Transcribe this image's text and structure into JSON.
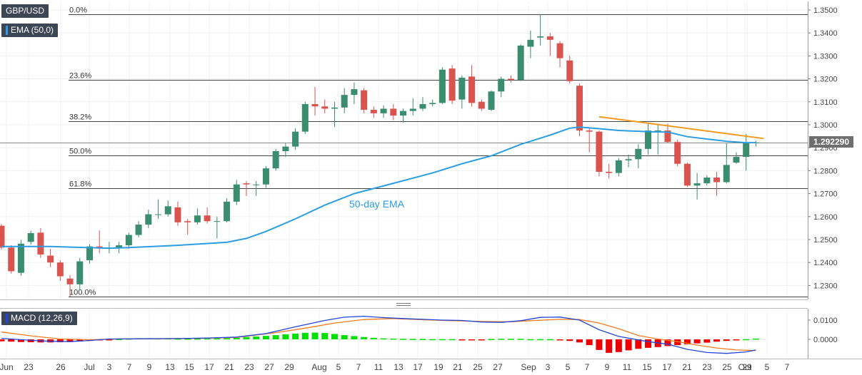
{
  "panel_labels": {
    "symbol": "GBP/USD",
    "ema_indicator": "EMA (50,0)",
    "macd_indicator": "MACD (12,26,9)",
    "ema_annotation": "50-day EMA",
    "last_price": "1.292290"
  },
  "colors": {
    "bull": "#3a8d6e",
    "bear": "#d9534f",
    "ema": "#2b9de0",
    "macd_line": "#2346d6",
    "signal_line": "#f07c1e",
    "hist_pos": "#00e000",
    "hist_neg": "#ee0000",
    "trendline": "#f39a1e",
    "fib": "#444444"
  },
  "chart_data": [
    {
      "type": "candlestick",
      "symbol": "GBP/USD",
      "ylim": [
        1.2245,
        1.3515
      ],
      "yticks": [
        "1.2300",
        "1.2400",
        "1.2500",
        "1.2600",
        "1.2700",
        "1.2800",
        "1.2900",
        "1.3000",
        "1.3100",
        "1.3200",
        "1.3300",
        "1.3400",
        "1.3500"
      ],
      "xtick_labels": [
        "Jun",
        "23",
        "26",
        "Jul",
        "3",
        "7",
        "9",
        "13",
        "15",
        "17",
        "21",
        "23",
        "27",
        "29",
        "Aug",
        "5",
        "7",
        "11",
        "13",
        "17",
        "19",
        "21",
        "25",
        "27",
        "Sep",
        "3",
        "5",
        "7",
        "9",
        "11",
        "15",
        "17",
        "21",
        "23",
        "25",
        "29",
        "Oct",
        "5",
        "7"
      ],
      "fibonacci": [
        {
          "label": "0.0%",
          "value": 1.3482
        },
        {
          "label": "23.6%",
          "value": 1.3196
        },
        {
          "label": "38.2%",
          "value": 1.3016
        },
        {
          "label": "50.0%",
          "value": 1.2868
        },
        {
          "label": "61.8%",
          "value": 1.2724
        },
        {
          "label": "100.0%",
          "value": 1.2251
        }
      ],
      "candles": [
        [
          1.256,
          1.2568,
          1.2455,
          1.2465
        ],
        [
          1.2465,
          1.2475,
          1.2352,
          1.2362
        ],
        [
          1.2355,
          1.2498,
          1.2342,
          1.2482
        ],
        [
          1.249,
          1.2538,
          1.2478,
          1.2528
        ],
        [
          1.253,
          1.255,
          1.242,
          1.2435
        ],
        [
          1.243,
          1.246,
          1.238,
          1.24
        ],
        [
          1.24,
          1.241,
          1.232,
          1.234
        ],
        [
          1.233,
          1.2345,
          1.2251,
          1.2305
        ],
        [
          1.2305,
          1.242,
          1.228,
          1.2405
        ],
        [
          1.241,
          1.248,
          1.2395,
          1.247
        ],
        [
          1.247,
          1.254,
          1.244,
          1.2465
        ],
        [
          1.2465,
          1.249,
          1.244,
          1.2465
        ],
        [
          1.2465,
          1.249,
          1.244,
          1.2475
        ],
        [
          1.2475,
          1.253,
          1.246,
          1.252
        ],
        [
          1.252,
          1.258,
          1.251,
          1.2565
        ],
        [
          1.2565,
          1.263,
          1.255,
          1.261
        ],
        [
          1.261,
          1.2675,
          1.259,
          1.261
        ],
        [
          1.261,
          1.267,
          1.26,
          1.2645
        ],
        [
          1.264,
          1.2665,
          1.256,
          1.2575
        ],
        [
          1.258,
          1.259,
          1.252,
          1.2575
        ],
        [
          1.2575,
          1.2635,
          1.2565,
          1.2605
        ],
        [
          1.2605,
          1.264,
          1.257,
          1.258
        ],
        [
          1.258,
          1.26,
          1.2505,
          1.258
        ],
        [
          1.258,
          1.268,
          1.2575,
          1.2665
        ],
        [
          1.2665,
          1.276,
          1.265,
          1.274
        ],
        [
          1.2745,
          1.2755,
          1.269,
          1.274
        ],
        [
          1.274,
          1.2755,
          1.269,
          1.274
        ],
        [
          1.274,
          1.282,
          1.2725,
          1.281
        ],
        [
          1.281,
          1.2895,
          1.28,
          1.2885
        ],
        [
          1.2885,
          1.292,
          1.286,
          1.2905
        ],
        [
          1.2905,
          1.2985,
          1.289,
          1.297
        ],
        [
          1.297,
          1.31,
          1.296,
          1.309
        ],
        [
          1.309,
          1.3165,
          1.304,
          1.308
        ],
        [
          1.308,
          1.311,
          1.305,
          1.307
        ],
        [
          1.307,
          1.31,
          1.299,
          1.3075
        ],
        [
          1.3075,
          1.316,
          1.305,
          1.313
        ],
        [
          1.313,
          1.3185,
          1.309,
          1.3155
        ],
        [
          1.315,
          1.316,
          1.305,
          1.3065
        ],
        [
          1.3065,
          1.308,
          1.303,
          1.305
        ],
        [
          1.305,
          1.3085,
          1.303,
          1.307
        ],
        [
          1.307,
          1.309,
          1.302,
          1.304
        ],
        [
          1.304,
          1.307,
          1.301,
          1.306
        ],
        [
          1.306,
          1.3115,
          1.304,
          1.307
        ],
        [
          1.307,
          1.312,
          1.306,
          1.309
        ],
        [
          1.309,
          1.311,
          1.308,
          1.3095
        ],
        [
          1.3095,
          1.325,
          1.309,
          1.324
        ],
        [
          1.3245,
          1.326,
          1.309,
          1.3105
        ],
        [
          1.311,
          1.3215,
          1.307,
          1.3205
        ],
        [
          1.321,
          1.326,
          1.308,
          1.3095
        ],
        [
          1.31,
          1.311,
          1.306,
          1.307
        ],
        [
          1.3065,
          1.315,
          1.306,
          1.3145
        ],
        [
          1.3145,
          1.321,
          1.312,
          1.32
        ],
        [
          1.32,
          1.3215,
          1.3185,
          1.3195
        ],
        [
          1.3195,
          1.335,
          1.319,
          1.3345
        ],
        [
          1.334,
          1.341,
          1.329,
          1.337
        ],
        [
          1.338,
          1.3482,
          1.3345,
          1.3385
        ],
        [
          1.3385,
          1.34,
          1.33,
          1.337
        ],
        [
          1.3355,
          1.3365,
          1.325,
          1.329
        ],
        [
          1.328,
          1.33,
          1.318,
          1.319
        ],
        [
          1.317,
          1.318,
          1.295,
          1.2975
        ],
        [
          1.2975,
          1.2985,
          1.288,
          1.297
        ],
        [
          1.297,
          1.2975,
          1.2775,
          1.2795
        ],
        [
          1.2795,
          1.283,
          1.2765,
          1.279
        ],
        [
          1.279,
          1.2855,
          1.2775,
          1.2845
        ],
        [
          1.2845,
          1.287,
          1.2815,
          1.285
        ],
        [
          1.285,
          1.2915,
          1.281,
          1.2895
        ],
        [
          1.2895,
          1.3005,
          1.287,
          1.2975
        ],
        [
          1.2975,
          1.3005,
          1.287,
          1.2975
        ],
        [
          1.2975,
          1.3005,
          1.292,
          1.2925
        ],
        [
          1.2925,
          1.2935,
          1.282,
          1.283
        ],
        [
          1.283,
          1.2835,
          1.273,
          1.2735
        ],
        [
          1.2735,
          1.279,
          1.2675,
          1.2745
        ],
        [
          1.2745,
          1.278,
          1.2735,
          1.277
        ],
        [
          1.277,
          1.2795,
          1.269,
          1.275
        ],
        [
          1.275,
          1.292,
          1.2745,
          1.2825
        ],
        [
          1.2835,
          1.288,
          1.283,
          1.286
        ],
        [
          1.286,
          1.296,
          1.28,
          1.292
        ],
        [
          1.292,
          1.293,
          1.2905,
          1.2923
        ]
      ],
      "ema_50": [
        [
          0,
          1.247
        ],
        [
          5,
          1.247
        ],
        [
          11,
          1.2462
        ],
        [
          13,
          1.2465
        ],
        [
          18,
          1.2475
        ],
        [
          23,
          1.2488
        ],
        [
          25,
          1.2505
        ],
        [
          27,
          1.2535
        ],
        [
          30,
          1.259
        ],
        [
          33,
          1.265
        ],
        [
          36,
          1.27
        ],
        [
          40,
          1.2745
        ],
        [
          44,
          1.279
        ],
        [
          47,
          1.283
        ],
        [
          50,
          1.2865
        ],
        [
          53,
          1.2915
        ],
        [
          56,
          1.2955
        ],
        [
          58,
          1.2985
        ],
        [
          59,
          1.299
        ],
        [
          61,
          1.2983
        ],
        [
          63,
          1.2975
        ],
        [
          66,
          1.297
        ],
        [
          68,
          1.2968
        ],
        [
          70,
          1.2948
        ],
        [
          72,
          1.2938
        ],
        [
          74,
          1.2928
        ],
        [
          76,
          1.2922
        ],
        [
          77,
          1.2922
        ]
      ],
      "trendline": [
        [
          61,
          1.3035
        ],
        [
          77.8,
          1.294
        ]
      ],
      "annotation": "50-day EMA"
    },
    {
      "type": "macd",
      "params": "12,26,9",
      "ylim": [
        -0.0085,
        0.0175
      ],
      "yticks": [
        "0.0100",
        "0.0000"
      ],
      "macd": [
        [
          0,
          0.0005
        ],
        [
          3,
          -0.0005
        ],
        [
          5,
          -0.001
        ],
        [
          7,
          -0.0012
        ],
        [
          9,
          -0.0006
        ],
        [
          11,
          0.0002
        ],
        [
          14,
          0.0003
        ],
        [
          18,
          0.0004
        ],
        [
          21,
          0.0007
        ],
        [
          24,
          0.0012
        ],
        [
          27,
          0.003
        ],
        [
          30,
          0.0065
        ],
        [
          33,
          0.0098
        ],
        [
          35,
          0.0115
        ],
        [
          37,
          0.012
        ],
        [
          39,
          0.0113
        ],
        [
          41,
          0.0108
        ],
        [
          43,
          0.0104
        ],
        [
          45,
          0.01
        ],
        [
          47,
          0.0098
        ],
        [
          49,
          0.009
        ],
        [
          51,
          0.0088
        ],
        [
          53,
          0.0097
        ],
        [
          55,
          0.0114
        ],
        [
          57,
          0.0116
        ],
        [
          59,
          0.01
        ],
        [
          61,
          0.005
        ],
        [
          63,
          0.0015
        ],
        [
          66,
          -0.0012
        ],
        [
          68,
          -0.0025
        ],
        [
          70,
          -0.0052
        ],
        [
          72,
          -0.0068
        ],
        [
          74,
          -0.0073
        ],
        [
          76,
          -0.0065
        ],
        [
          77,
          -0.0055
        ]
      ],
      "signal": [
        [
          0,
          0.0038
        ],
        [
          3,
          0.0018
        ],
        [
          6,
          0.0002
        ],
        [
          9,
          -0.0002
        ],
        [
          12,
          0.0002
        ],
        [
          16,
          0.0003
        ],
        [
          20,
          0.0005
        ],
        [
          24,
          0.001
        ],
        [
          28,
          0.0035
        ],
        [
          31,
          0.0058
        ],
        [
          34,
          0.0085
        ],
        [
          37,
          0.0103
        ],
        [
          40,
          0.0108
        ],
        [
          43,
          0.0102
        ],
        [
          46,
          0.0097
        ],
        [
          49,
          0.0093
        ],
        [
          52,
          0.0091
        ],
        [
          54,
          0.0097
        ],
        [
          57,
          0.0104
        ],
        [
          59,
          0.0103
        ],
        [
          61,
          0.0085
        ],
        [
          63,
          0.0055
        ],
        [
          65,
          0.002
        ],
        [
          67,
          0.0002
        ],
        [
          69,
          -0.0012
        ],
        [
          71,
          -0.003
        ],
        [
          73,
          -0.0045
        ],
        [
          75,
          -0.0055
        ],
        [
          77,
          -0.0058
        ]
      ],
      "histogram": [
        -0.001,
        -0.0012,
        -0.0014,
        -0.0015,
        -0.0016,
        -0.0016,
        -0.0015,
        -0.0014,
        -0.0011,
        -0.0008,
        -0.0004,
        -0.0001,
        0.0002,
        0.0004,
        0.0006,
        0.0006,
        0.0005,
        0.0005,
        0.0004,
        0.0004,
        0.0004,
        0.0005,
        0.0005,
        0.0006,
        0.0008,
        0.0012,
        0.0015,
        0.0018,
        0.0022,
        0.0026,
        0.003,
        0.0034,
        0.0035,
        0.0033,
        0.0028,
        0.0022,
        0.0017,
        0.0012,
        0.0008,
        0.0005,
        0.0004,
        0.0003,
        0.0002,
        0.0002,
        0.0001,
        0.0001,
        0.0001,
        -0.0001,
        -0.0002,
        -0.0002,
        0.0002,
        0.0003,
        0.0003,
        0.0003,
        0.0001,
        0.0001,
        0.0001,
        -0.0002,
        -0.0008,
        -0.0016,
        -0.003,
        -0.0055,
        -0.007,
        -0.0066,
        -0.0057,
        -0.0049,
        -0.0044,
        -0.004,
        -0.0035,
        -0.003,
        -0.0026,
        -0.0021,
        -0.0017,
        -0.0012,
        -0.0008,
        -0.0004,
        0.0001,
        0.0004
      ]
    }
  ]
}
